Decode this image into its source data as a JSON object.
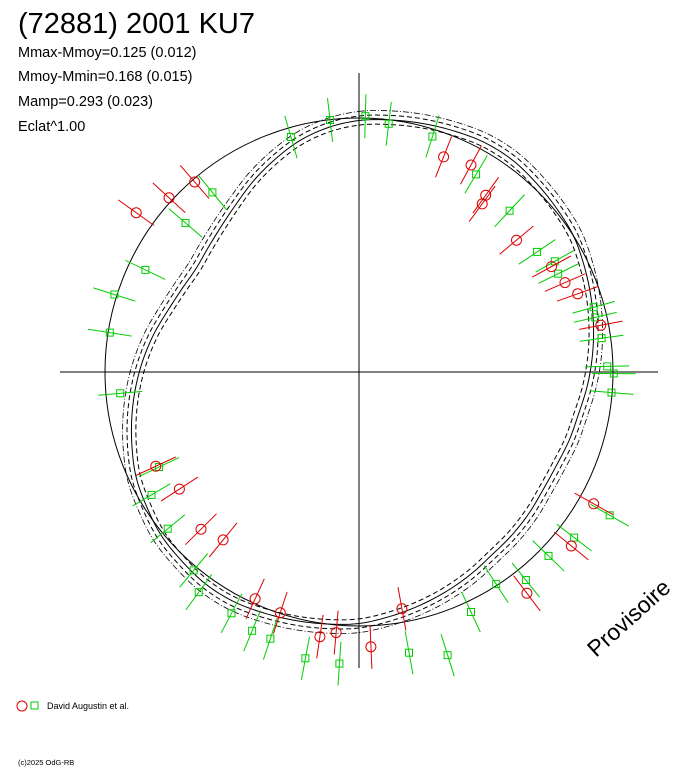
{
  "chart_data": {
    "type": "scatter",
    "title": "(72881) 2001 KU7",
    "stats": [
      "Mmax-Mmoy=0.125 (0.012)",
      "Mmoy-Mmin=0.168 (0.015)",
      "Mamp=0.293 (0.023)",
      "Eclat^1.00"
    ],
    "stamp": "Provisoire",
    "credit": "(c)2025 OdG-RB",
    "legend": {
      "label": "David Augustin et al.",
      "placement": "bottom-left"
    },
    "colors": {
      "red_series": "#dd0000",
      "green_series": "#00cc00",
      "axes": "#000000"
    },
    "grid": false,
    "axis_lim": [
      -1.5,
      1.5
    ],
    "reference_circle_radius": 1.0,
    "mean_curve_radius": [
      0.99,
      1.0,
      1.01,
      1.02,
      1.03,
      1.03,
      1.02,
      1.01,
      1.0,
      0.98,
      0.96,
      0.94,
      0.92,
      0.9,
      0.88,
      0.87,
      0.86,
      0.86,
      0.87,
      0.88,
      0.89,
      0.91,
      0.93,
      0.95,
      0.97,
      0.99,
      1.0,
      1.01,
      1.02,
      1.03,
      1.03,
      1.02,
      1.01,
      0.99,
      0.97,
      0.94,
      0.91,
      0.88,
      0.85,
      0.82,
      0.79,
      0.77,
      0.76,
      0.77,
      0.79,
      0.82,
      0.86,
      0.9,
      0.94,
      0.97
    ],
    "series_red": [
      [
        0.952,
        0.184
      ],
      [
        0.861,
        0.308
      ],
      [
        0.811,
        0.352
      ],
      [
        0.758,
        0.415
      ],
      [
        0.62,
        0.519
      ],
      [
        0.485,
        0.662
      ],
      [
        0.499,
        0.696
      ],
      [
        0.441,
        0.815
      ],
      [
        0.333,
        0.847
      ],
      [
        -0.748,
        0.686
      ],
      [
        -0.877,
        0.627
      ],
      [
        -0.647,
        0.748
      ],
      [
        -0.8,
        -0.371
      ],
      [
        -0.707,
        -0.461
      ],
      [
        -0.622,
        -0.619
      ],
      [
        -0.535,
        -0.661
      ],
      [
        -0.409,
        -0.893
      ],
      [
        -0.31,
        -0.948
      ],
      [
        -0.154,
        -1.042
      ],
      [
        -0.09,
        -1.026
      ],
      [
        0.047,
        -1.082
      ],
      [
        0.169,
        -0.932
      ],
      [
        0.661,
        -0.871
      ],
      [
        0.836,
        -0.685
      ],
      [
        0.924,
        -0.519
      ]
    ],
    "series_green": [
      [
        0.924,
        0.255
      ],
      [
        0.93,
        0.215
      ],
      [
        0.955,
        0.133
      ],
      [
        0.977,
        0.022
      ],
      [
        1.003,
        -0.006
      ],
      [
        0.994,
        -0.081
      ],
      [
        0.784,
        0.387
      ],
      [
        0.771,
        0.436
      ],
      [
        0.701,
        0.473
      ],
      [
        0.593,
        0.635
      ],
      [
        0.461,
        0.778
      ],
      [
        0.289,
        0.927
      ],
      [
        0.117,
        0.977
      ],
      [
        0.025,
        1.007
      ],
      [
        -0.114,
        0.992
      ],
      [
        -0.268,
        0.925
      ],
      [
        -0.577,
        0.707
      ],
      [
        -0.683,
        0.587
      ],
      [
        -0.841,
        0.402
      ],
      [
        -0.963,
        0.305
      ],
      [
        -0.981,
        0.155
      ],
      [
        -0.94,
        -0.084
      ],
      [
        -0.787,
        -0.374
      ],
      [
        -0.817,
        -0.484
      ],
      [
        -0.753,
        -0.617
      ],
      [
        -0.651,
        -0.781
      ],
      [
        -0.631,
        -0.867
      ],
      [
        -0.502,
        -0.95
      ],
      [
        -0.421,
        -1.019
      ],
      [
        -0.349,
        -1.05
      ],
      [
        -0.211,
        -1.127
      ],
      [
        -0.077,
        -1.148
      ],
      [
        0.197,
        -1.105
      ],
      [
        0.349,
        -1.115
      ],
      [
        0.441,
        -0.945
      ],
      [
        0.54,
        -0.835
      ],
      [
        0.657,
        -0.819
      ],
      [
        0.746,
        -0.724
      ],
      [
        0.987,
        -0.564
      ],
      [
        0.847,
        -0.652
      ]
    ]
  }
}
